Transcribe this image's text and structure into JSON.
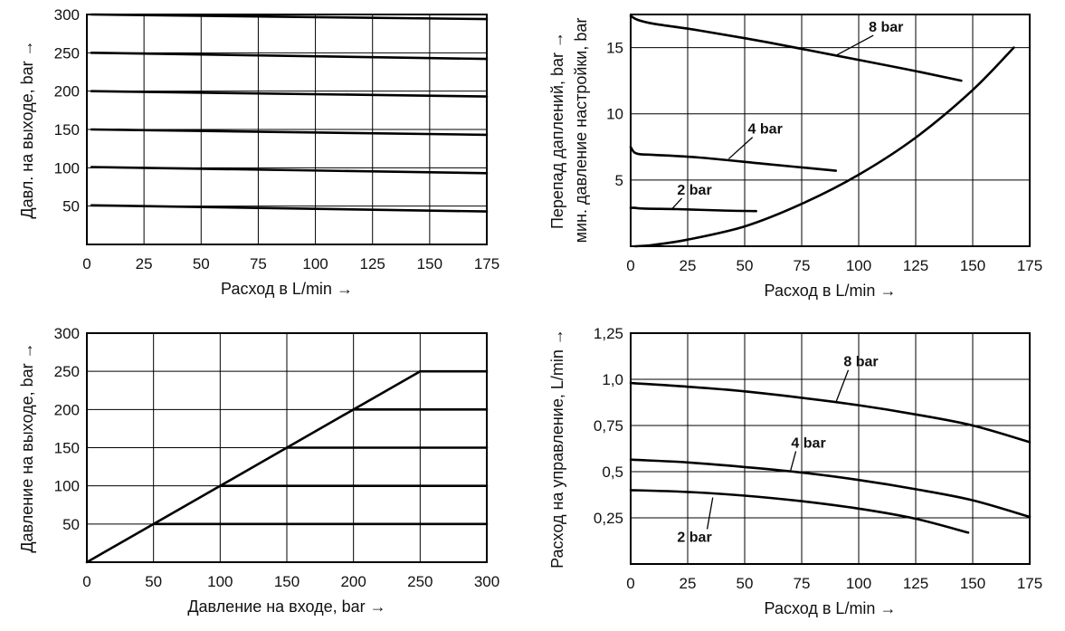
{
  "chart_data": [
    {
      "type": "line",
      "xlabel": "Расход в L/min  →",
      "ylabel": "Давл. на выходе, bar  →",
      "xlim": [
        0,
        175
      ],
      "ylim": [
        0,
        300
      ],
      "xticks": [
        0,
        25,
        50,
        75,
        100,
        125,
        150,
        175
      ],
      "xtick_labels": [
        "0",
        "25",
        "50",
        "75",
        "100",
        "125",
        "150",
        "175"
      ],
      "yticks": [
        50,
        100,
        150,
        200,
        250,
        300
      ],
      "ytick_labels": [
        "50",
        "100",
        "150",
        "200",
        "250",
        "300"
      ],
      "grid": true,
      "series": [
        {
          "x": [
            2,
            175
          ],
          "y": [
            300,
            294
          ]
        },
        {
          "x": [
            2,
            175
          ],
          "y": [
            250,
            242
          ]
        },
        {
          "x": [
            2,
            175
          ],
          "y": [
            200,
            193
          ]
        },
        {
          "x": [
            2,
            175
          ],
          "y": [
            150,
            143
          ]
        },
        {
          "x": [
            2,
            175
          ],
          "y": [
            101,
            93
          ]
        },
        {
          "x": [
            2,
            175
          ],
          "y": [
            51,
            43
          ]
        }
      ],
      "annotations": []
    },
    {
      "type": "line",
      "xlabel": "Расход в L/min  →",
      "ylabel": "Перепад даплений, bar  →",
      "ylabel2": "мин. давление настройки, bar",
      "xlim": [
        0,
        175
      ],
      "ylim": [
        0,
        17.5
      ],
      "xticks": [
        0,
        25,
        50,
        75,
        100,
        125,
        150,
        175
      ],
      "xtick_labels": [
        "0",
        "25",
        "50",
        "75",
        "100",
        "125",
        "150",
        "175"
      ],
      "yticks": [
        5,
        10,
        15
      ],
      "ytick_labels": [
        "5",
        "10",
        "15"
      ],
      "grid": true,
      "series": [
        {
          "x": [
            0,
            3,
            10,
            30,
            60,
            90,
            120,
            145
          ],
          "y": [
            17.4,
            17.1,
            16.8,
            16.3,
            15.4,
            14.4,
            13.4,
            12.5
          ]
        },
        {
          "x": [
            0,
            1.5,
            4,
            10,
            30,
            60,
            90
          ],
          "y": [
            7.5,
            7.1,
            6.95,
            6.9,
            6.7,
            6.2,
            5.7
          ]
        },
        {
          "x": [
            0,
            2,
            5,
            20,
            40,
            55
          ],
          "y": [
            2.9,
            2.9,
            2.85,
            2.8,
            2.7,
            2.65
          ]
        },
        {
          "x": [
            2,
            10,
            25,
            50,
            75,
            100,
            125,
            150,
            168
          ],
          "y": [
            0,
            0.1,
            0.5,
            1.5,
            3.2,
            5.4,
            8.2,
            11.8,
            15
          ]
        }
      ],
      "annotations": [
        {
          "text": "8 bar",
          "x": 112,
          "y": 16.2,
          "point_x": 90,
          "point_y": 14.4
        },
        {
          "text": "4 bar",
          "x": 59,
          "y": 8.5,
          "point_x": 43,
          "point_y": 6.6
        },
        {
          "text": "2 bar",
          "x": 28,
          "y": 3.9,
          "point_x": 18,
          "point_y": 2.8
        }
      ]
    },
    {
      "type": "line",
      "xlabel": "Давление на входе, bar  →",
      "ylabel": "Давление на выходе, bar  →",
      "xlim": [
        0,
        300
      ],
      "ylim": [
        0,
        300
      ],
      "xticks": [
        0,
        50,
        100,
        150,
        200,
        250,
        300
      ],
      "xtick_labels": [
        "0",
        "50",
        "100",
        "150",
        "200",
        "250",
        "300"
      ],
      "yticks": [
        50,
        100,
        150,
        200,
        250,
        300
      ],
      "ytick_labels": [
        "50",
        "100",
        "150",
        "200",
        "250",
        "300"
      ],
      "grid": true,
      "series": [
        {
          "x": [
            0,
            250
          ],
          "y": [
            0,
            250
          ]
        },
        {
          "x": [
            250,
            300
          ],
          "y": [
            250,
            250
          ]
        },
        {
          "x": [
            200,
            300
          ],
          "y": [
            200,
            200
          ]
        },
        {
          "x": [
            150,
            300
          ],
          "y": [
            150,
            150
          ]
        },
        {
          "x": [
            100,
            300
          ],
          "y": [
            100,
            100
          ]
        },
        {
          "x": [
            50,
            300
          ],
          "y": [
            50,
            50
          ]
        }
      ],
      "annotations": []
    },
    {
      "type": "line",
      "xlabel": "Расход в L/min  →",
      "ylabel": "Расход на управление, L/min  →",
      "xlim": [
        0,
        175
      ],
      "ylim": [
        0,
        1.25
      ],
      "xticks": [
        0,
        25,
        50,
        75,
        100,
        125,
        150,
        175
      ],
      "xtick_labels": [
        "0",
        "25",
        "50",
        "75",
        "100",
        "125",
        "150",
        "175"
      ],
      "yticks": [
        0.25,
        0.5,
        0.75,
        1.0,
        1.25
      ],
      "ytick_labels": [
        "0,25",
        "0,5",
        "0,75",
        "1,0",
        "1,25"
      ],
      "grid": true,
      "series": [
        {
          "x": [
            0,
            25,
            50,
            75,
            100,
            125,
            150,
            175
          ],
          "y": [
            0.98,
            0.96,
            0.935,
            0.9,
            0.86,
            0.81,
            0.75,
            0.66
          ]
        },
        {
          "x": [
            0,
            25,
            50,
            75,
            100,
            125,
            150,
            175
          ],
          "y": [
            0.565,
            0.55,
            0.525,
            0.495,
            0.455,
            0.405,
            0.345,
            0.255
          ]
        },
        {
          "x": [
            0,
            25,
            50,
            75,
            100,
            125,
            148
          ],
          "y": [
            0.4,
            0.39,
            0.37,
            0.34,
            0.3,
            0.245,
            0.17
          ]
        }
      ],
      "annotations": [
        {
          "text": "8 bar",
          "x": 101,
          "y": 1.07,
          "point_x": 90,
          "point_y": 0.875
        },
        {
          "text": "4 bar",
          "x": 78,
          "y": 0.63,
          "point_x": 70,
          "point_y": 0.5
        },
        {
          "text": "2 bar",
          "x": 28,
          "y": 0.12,
          "point_x": 36,
          "point_y": 0.36
        }
      ]
    }
  ]
}
